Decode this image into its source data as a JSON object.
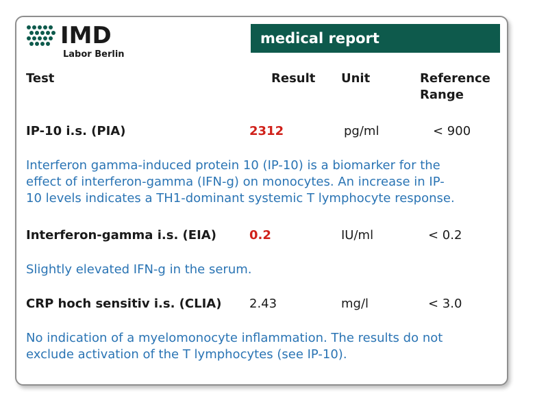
{
  "header": {
    "logo": {
      "name": "IMD",
      "subtitle": "Labor Berlin"
    },
    "banner": "medical report"
  },
  "columns": {
    "test": "Test",
    "result": "Result",
    "unit": "Unit",
    "reference_line1": "Reference",
    "reference_line2": "Range"
  },
  "rows": [
    {
      "test": "IP-10 i.s.  (PIA)",
      "result": "2312",
      "unit": "pg/ml",
      "reference": "< 900",
      "description": [
        "Interferon gamma-induced protein 10 (IP-10) is a biomarker for the",
        "effect of interferon-gamma (IFN-g) on monocytes. An increase in IP-",
        "10 levels indicates a TH1-dominant systemic T lymphocyte response."
      ]
    },
    {
      "test": "Interferon-gamma i.s.  (EIA)",
      "result": "0.2",
      "unit": "IU/ml",
      "reference": "< 0.2",
      "description": [
        "Slightly elevated IFN-g in the serum."
      ]
    },
    {
      "test": "CRP hoch sensitiv i.s.  (CLIA)",
      "result": "2.43",
      "unit": "mg/l",
      "reference": "< 3.0",
      "description": [
        "No indication of a myelomonocyte inflammation. The results do not",
        "exclude activation of the T lymphocytes (see IP-10)."
      ]
    }
  ],
  "colors": {
    "banner_bg": "#0e5a4c",
    "result_flag": "#d0211a",
    "comment_text": "#2a74b4"
  }
}
